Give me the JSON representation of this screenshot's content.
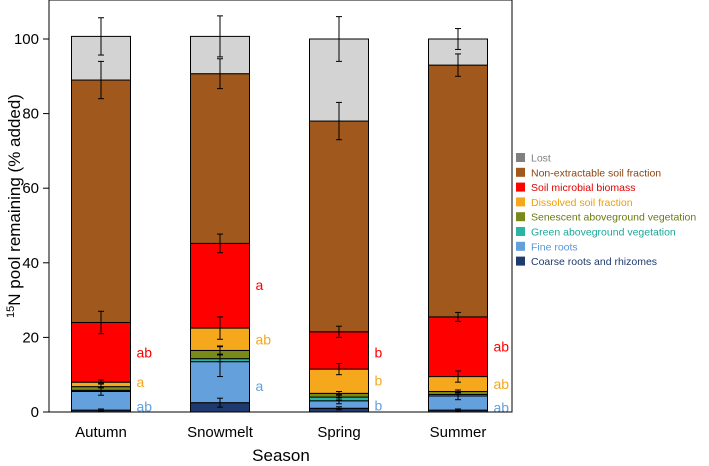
{
  "chart_data": {
    "type": "bar",
    "stacked": true,
    "xlabel": "Season",
    "ylabel_prefix": "15",
    "ylabel_main": "N pool remaining (% added)",
    "ylim": [
      0,
      105
    ],
    "yticks": [
      0,
      20,
      40,
      60,
      80,
      100
    ],
    "categories": [
      "Autumn",
      "Snowmelt",
      "Spring",
      "Summer"
    ],
    "series": [
      {
        "name": "Coarse roots and rhizomes",
        "color": "#1f3a6e",
        "values": [
          0.5,
          2.5,
          1.0,
          0.5
        ]
      },
      {
        "name": "Fine roots",
        "color": "#64a0dc",
        "values": [
          5.0,
          11.0,
          2.0,
          3.8
        ]
      },
      {
        "name": "Green aboveground vegetation",
        "color": "#2ab4a4",
        "values": [
          0.3,
          0.8,
          1.0,
          0.4
        ]
      },
      {
        "name": "Senescent aboveground vegetation",
        "color": "#7a8a18",
        "values": [
          1.0,
          2.2,
          1.0,
          0.8
        ]
      },
      {
        "name": "Dissolved soil fraction",
        "color": "#f5a81c",
        "values": [
          1.2,
          6.0,
          6.5,
          4.0
        ]
      },
      {
        "name": "Soil microbial biomass",
        "color": "#ff0000",
        "values": [
          16.0,
          22.7,
          10.0,
          16.0
        ]
      },
      {
        "name": "Non-extractable soil fraction",
        "color": "#a0581c",
        "values": [
          65.0,
          45.5,
          56.5,
          67.5
        ]
      },
      {
        "name": "Lost",
        "color": "#d3d3d3",
        "values": [
          11.7,
          10.0,
          22.0,
          7.0
        ]
      }
    ],
    "error_bars": [
      {
        "category": "Autumn",
        "y": 0.5,
        "err": 0.3
      },
      {
        "category": "Autumn",
        "y": 5.5,
        "err": 1.0
      },
      {
        "category": "Autumn",
        "y": 7.0,
        "err": 0.5
      },
      {
        "category": "Autumn",
        "y": 8.2,
        "err": 0.4
      },
      {
        "category": "Autumn",
        "y": 24.0,
        "err": 3.0
      },
      {
        "category": "Autumn",
        "y": 89.0,
        "err": 5.0
      },
      {
        "category": "Autumn",
        "y": 100.7,
        "err": 5.0
      },
      {
        "category": "Snowmelt",
        "y": 2.5,
        "err": 1.2
      },
      {
        "category": "Snowmelt",
        "y": 13.5,
        "err": 4.0
      },
      {
        "category": "Snowmelt",
        "y": 14.5,
        "err": 1.0
      },
      {
        "category": "Snowmelt",
        "y": 16.5,
        "err": 1.2
      },
      {
        "category": "Snowmelt",
        "y": 22.5,
        "err": 3.0
      },
      {
        "category": "Snowmelt",
        "y": 45.2,
        "err": 2.5
      },
      {
        "category": "Snowmelt",
        "y": 90.7,
        "err": 4.0
      },
      {
        "category": "Snowmelt",
        "y": 100.7,
        "err": 5.5
      },
      {
        "category": "Spring",
        "y": 1.0,
        "err": 0.4
      },
      {
        "category": "Spring",
        "y": 3.0,
        "err": 0.8
      },
      {
        "category": "Spring",
        "y": 4.0,
        "err": 0.8
      },
      {
        "category": "Spring",
        "y": 5.0,
        "err": 0.5
      },
      {
        "category": "Spring",
        "y": 11.5,
        "err": 1.5
      },
      {
        "category": "Spring",
        "y": 21.5,
        "err": 1.5
      },
      {
        "category": "Spring",
        "y": 78.0,
        "err": 5.0
      },
      {
        "category": "Spring",
        "y": 100.0,
        "err": 6.0
      },
      {
        "category": "Summer",
        "y": 0.5,
        "err": 0.3
      },
      {
        "category": "Summer",
        "y": 4.3,
        "err": 1.0
      },
      {
        "category": "Summer",
        "y": 4.7,
        "err": 0.4
      },
      {
        "category": "Summer",
        "y": 5.5,
        "err": 0.4
      },
      {
        "category": "Summer",
        "y": 9.5,
        "err": 1.5
      },
      {
        "category": "Summer",
        "y": 25.5,
        "err": 1.2
      },
      {
        "category": "Summer",
        "y": 93.0,
        "err": 3.0
      },
      {
        "category": "Summer",
        "y": 100.0,
        "err": 2.8
      }
    ],
    "significance_labels": [
      {
        "category": "Autumn",
        "text": "ab",
        "y": 16,
        "color": "#ff0000"
      },
      {
        "category": "Autumn",
        "text": "a",
        "y": 8,
        "color": "#f5a81c"
      },
      {
        "category": "Autumn",
        "text": "ab",
        "y": 1.5,
        "color": "#64a0dc"
      },
      {
        "category": "Snowmelt",
        "text": "a",
        "y": 34,
        "color": "#ff0000"
      },
      {
        "category": "Snowmelt",
        "text": "ab",
        "y": 19.5,
        "color": "#f5a81c"
      },
      {
        "category": "Snowmelt",
        "text": "a",
        "y": 7,
        "color": "#64a0dc"
      },
      {
        "category": "Spring",
        "text": "b",
        "y": 16,
        "color": "#ff0000"
      },
      {
        "category": "Spring",
        "text": "b",
        "y": 8.5,
        "color": "#f5a81c"
      },
      {
        "category": "Spring",
        "text": "b",
        "y": 1.8,
        "color": "#64a0dc"
      },
      {
        "category": "Summer",
        "text": "ab",
        "y": 17.5,
        "color": "#ff0000"
      },
      {
        "category": "Summer",
        "text": "ab",
        "y": 7.5,
        "color": "#f5a81c"
      },
      {
        "category": "Summer",
        "text": "ab",
        "y": 1.2,
        "color": "#64a0dc"
      }
    ],
    "legend": {
      "position": "right",
      "order": [
        "Lost",
        "Non-extractable soil fraction",
        "Soil microbial biomass",
        "Dissolved soil fraction",
        "Senescent aboveground vegetation",
        "Green aboveground vegetation",
        "Fine roots",
        "Coarse roots and rhizomes"
      ],
      "items": [
        {
          "label": "Lost",
          "color": "#808080",
          "text_color": "#808080"
        },
        {
          "label": "Non-extractable soil fraction",
          "color": "#a0581c",
          "text_color": "#8b4513"
        },
        {
          "label": "Soil microbial biomass",
          "color": "#ff0000",
          "text_color": "#e00000"
        },
        {
          "label": "Dissolved soil fraction",
          "color": "#f5a81c",
          "text_color": "#f0a000"
        },
        {
          "label": "Senescent aboveground vegetation",
          "color": "#7a8a18",
          "text_color": "#6b7a10"
        },
        {
          "label": "Green aboveground vegetation",
          "color": "#2ab4a4",
          "text_color": "#1aa898"
        },
        {
          "label": "Fine roots",
          "color": "#64a0dc",
          "text_color": "#5a96d8"
        },
        {
          "label": "Coarse roots and rhizomes",
          "color": "#1f3a6e",
          "text_color": "#1f3a6e"
        }
      ]
    }
  }
}
